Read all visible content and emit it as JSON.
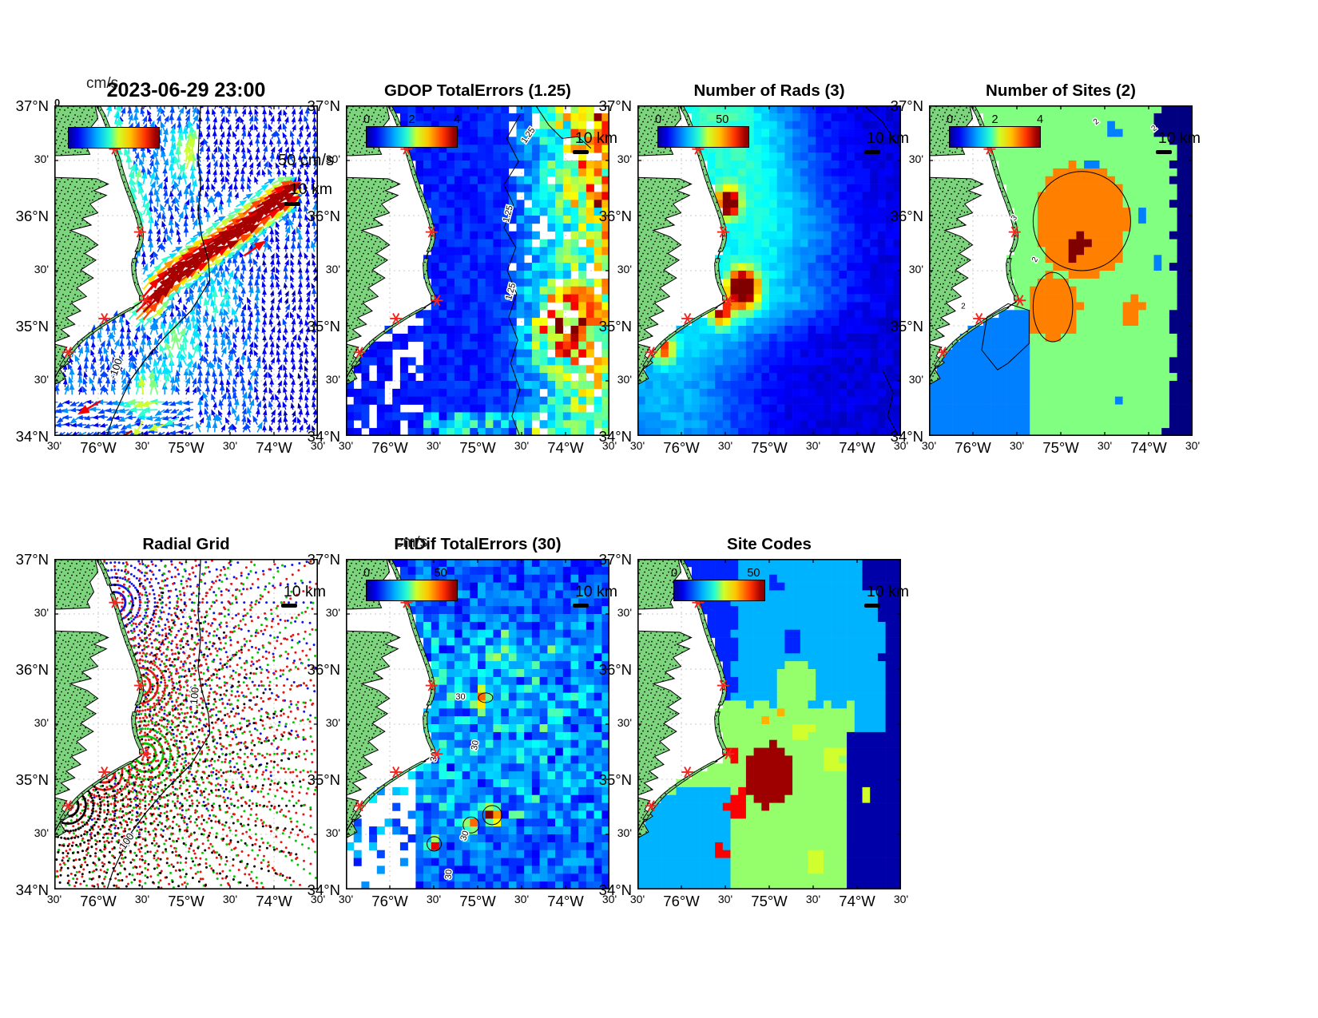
{
  "figure": {
    "axis": {
      "x_ticks": [
        "30'",
        "76°W",
        "30'",
        "75°W",
        "30'",
        "74°W",
        "30'"
      ],
      "y_ticks": [
        "37°N",
        "30'",
        "36°N",
        "30'",
        "35°N",
        "30'",
        "34°N"
      ],
      "lon_range_deg_w": [
        -76.5,
        -73.5
      ],
      "lat_range_deg_n": [
        34,
        37
      ]
    },
    "colors": {
      "land": "#7cd47c",
      "water": "#ffffff",
      "coastline": "#000000",
      "site_marker": "#f02820",
      "gridline": "#c9c9c9",
      "radial_grid_series": [
        "#1414e6",
        "#e81414",
        "#00c800",
        "#e81414",
        "#000000"
      ]
    },
    "scalebar_label": "10 km",
    "sites_uv": [
      [
        0.23,
        0.132
      ],
      [
        0.325,
        0.383
      ],
      [
        0.345,
        0.59
      ],
      [
        0.19,
        0.645
      ],
      [
        0.052,
        0.747
      ]
    ]
  },
  "panels": [
    {
      "id": "surface-currents",
      "title": "2023-06-29 23:00",
      "units_label": "cm/s",
      "colorbar": {
        "ticks_overlapped": "0 2 4 6 8 10 12 14 16 18 20 22 24 26 28 30 32 34 36 38 40 42 44 46 48 50",
        "range": [
          0,
          50
        ]
      },
      "speed_scale": "50 cm/s",
      "scalebar": "10 km",
      "contour_label": "-100"
    },
    {
      "id": "gdop-total-errors",
      "title": "GDOP TotalErrors (1.25)",
      "colorbar": {
        "ticks": [
          "0",
          "2",
          "4"
        ],
        "range": [
          0,
          4
        ]
      },
      "scalebar": "10 km",
      "contour_label": "1.25"
    },
    {
      "id": "number-of-rads",
      "title": "Number of Rads (3)",
      "colorbar": {
        "ticks": [
          "0",
          "50"
        ],
        "range": [
          0,
          50
        ]
      },
      "scalebar": "10 km"
    },
    {
      "id": "number-of-sites",
      "title": "Number of Sites (2)",
      "colorbar": {
        "ticks": [
          "0",
          "2",
          "4"
        ],
        "range": [
          0,
          4
        ]
      },
      "scalebar": "10 km",
      "contour_labels": [
        "2",
        "3"
      ]
    },
    {
      "id": "radial-grid",
      "title": "Radial Grid",
      "scalebar": "10 km",
      "contour_label": "100"
    },
    {
      "id": "fitdif-total-errors",
      "title": "FitDif TotalErrors (30)",
      "units_label": "cm/s",
      "colorbar": {
        "ticks": [
          "0",
          "50"
        ],
        "range": [
          0,
          50
        ]
      },
      "scalebar": "10 km",
      "contour_label": "30"
    },
    {
      "id": "site-codes",
      "title": "Site Codes",
      "colorbar": {
        "ticks": [
          "0",
          "50"
        ],
        "range": [
          0,
          50
        ]
      },
      "scalebar": "10 km"
    }
  ],
  "chart_data": [
    {
      "panel": "2023-06-29 23:00",
      "type": "vector-map",
      "variable": "surface current velocity",
      "units": "cm/s",
      "colorbar_range": [
        0,
        50
      ],
      "reference_arrow_cm_s": 50,
      "lon_range": [
        -76.5,
        -73.5
      ],
      "lat_range": [
        34,
        37
      ],
      "depth_contour_m": -100,
      "radar_sites_lonlat": [
        [
          -75.81,
          36.6
        ],
        [
          -75.53,
          35.85
        ],
        [
          -75.47,
          35.23
        ],
        [
          -75.93,
          35.07
        ],
        [
          -76.34,
          34.76
        ]
      ],
      "features": [
        {
          "name": "Gulf Stream jet",
          "approx_path_lonlat": [
            [
              -75.5,
              35.14
            ],
            [
              -74.85,
              35.65
            ],
            [
              -74.0,
              36.14
            ]
          ],
          "peak_speed_cm_s": 50
        },
        {
          "name": "offshore background flow",
          "speed_cm_s": "5-15",
          "direction": "northward"
        },
        {
          "name": "southwestward nearshore flow at southern edge",
          "speed_cm_s": "25-50"
        }
      ]
    },
    {
      "panel": "GDOP TotalErrors (1.25)",
      "type": "heatmap-map",
      "colorbar_range": [
        0,
        4
      ],
      "contour_level": 1.25,
      "interior_value_typical": 0.7,
      "high_value_regions": [
        "eastern edge 2.5-4",
        "northeast corner 3-4",
        "east-central patch 2.5-4"
      ]
    },
    {
      "panel": "Number of Rads (3)",
      "type": "heatmap-map",
      "colorbar_range": [
        0,
        50
      ],
      "offshore_value_typical": "3-6",
      "hotspots": [
        {
          "lonlat": [
            -75.45,
            36.1
          ],
          "value": 46
        },
        {
          "lonlat": [
            -75.3,
            35.33
          ],
          "value": 50
        },
        {
          "lonlat": [
            -75.55,
            35.12
          ],
          "value": 32
        },
        {
          "lonlat": [
            -76.2,
            34.8
          ],
          "value": 26
        }
      ]
    },
    {
      "panel": "Number of Sites (2)",
      "type": "heatmap-map",
      "colorbar_range": [
        0,
        4
      ],
      "dominant_value": 2,
      "contour_labels": [
        2,
        3
      ],
      "patches": [
        {
          "value": 3,
          "where": "central offshore blob"
        },
        {
          "value": 4,
          "where": "small cluster near 35.7N 74.9W"
        },
        {
          "value": 1,
          "where": "southwest nearshore and scattered cells"
        },
        {
          "value": 0,
          "where": "far-east corners"
        }
      ]
    },
    {
      "panel": "Radial Grid",
      "type": "scatter-map",
      "depth_contour_m": 100,
      "series": [
        {
          "name": "northern site grid",
          "color": "blue"
        },
        {
          "name": "Hatteras site grid",
          "color": "red"
        },
        {
          "name": "Lookout site grid",
          "color": "green"
        },
        {
          "name": "southwest site grid",
          "color": "red"
        },
        {
          "name": "southern site grid",
          "color": "black"
        }
      ]
    },
    {
      "panel": "FitDif TotalErrors (30)",
      "type": "heatmap-map",
      "units": "cm/s",
      "colorbar_range": [
        0,
        50
      ],
      "contour_level": 30,
      "typical_value": "5-15",
      "hotspots": [
        {
          "lonlat": [
            -75.1,
            34.6
          ],
          "value": 50
        },
        {
          "lonlat": [
            -75.35,
            34.55
          ],
          "value": 45
        },
        {
          "lonlat": [
            -75.9,
            34.42
          ],
          "value": 40
        }
      ]
    },
    {
      "panel": "Site Codes",
      "type": "categorical-map",
      "regions": [
        "royal-blue northwest",
        "light-blue north-central",
        "navy east wedge and southeast",
        "cyan south-central",
        "spring-green patches",
        "dark-red southwest blob",
        "red southwest patches",
        "yellow specks at region junction"
      ]
    }
  ]
}
